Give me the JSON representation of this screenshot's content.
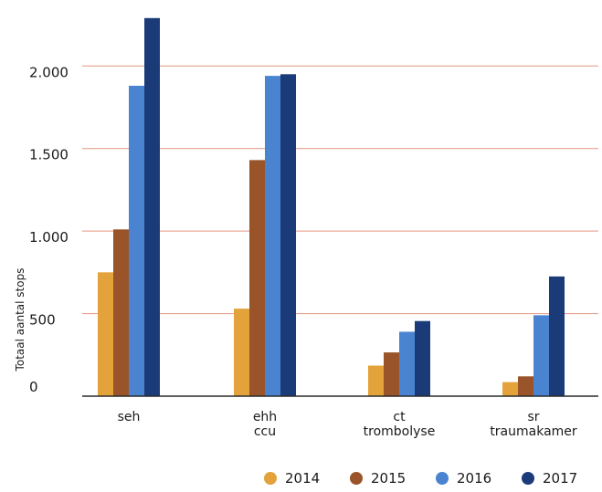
{
  "chart_data": {
    "type": "bar",
    "title": "",
    "xlabel": "",
    "ylabel": "Totaal aantal stops",
    "ylim": [
      0,
      2300
    ],
    "yticks": [
      0,
      500,
      1000,
      1500,
      2000
    ],
    "ytick_labels": [
      "0",
      "500",
      "1.000",
      "1.500",
      "2.000"
    ],
    "grid": true,
    "legend_position": "bottom",
    "categories": [
      [
        "seh"
      ],
      [
        "ehh",
        "ccu"
      ],
      [
        "ct",
        "trombolyse"
      ],
      [
        "sr",
        "traumakamer"
      ]
    ],
    "series": [
      {
        "name": "2014",
        "color": "#e3a23a",
        "values": [
          750,
          530,
          185,
          85
        ]
      },
      {
        "name": "2015",
        "color": "#9a542a",
        "values": [
          1010,
          1430,
          265,
          120
        ]
      },
      {
        "name": "2016",
        "color": "#4a84d0",
        "values": [
          1880,
          1940,
          390,
          490
        ]
      },
      {
        "name": "2017",
        "color": "#1b3a78",
        "values": [
          2290,
          1950,
          455,
          725
        ]
      }
    ],
    "gridline_color": "#e39580"
  }
}
